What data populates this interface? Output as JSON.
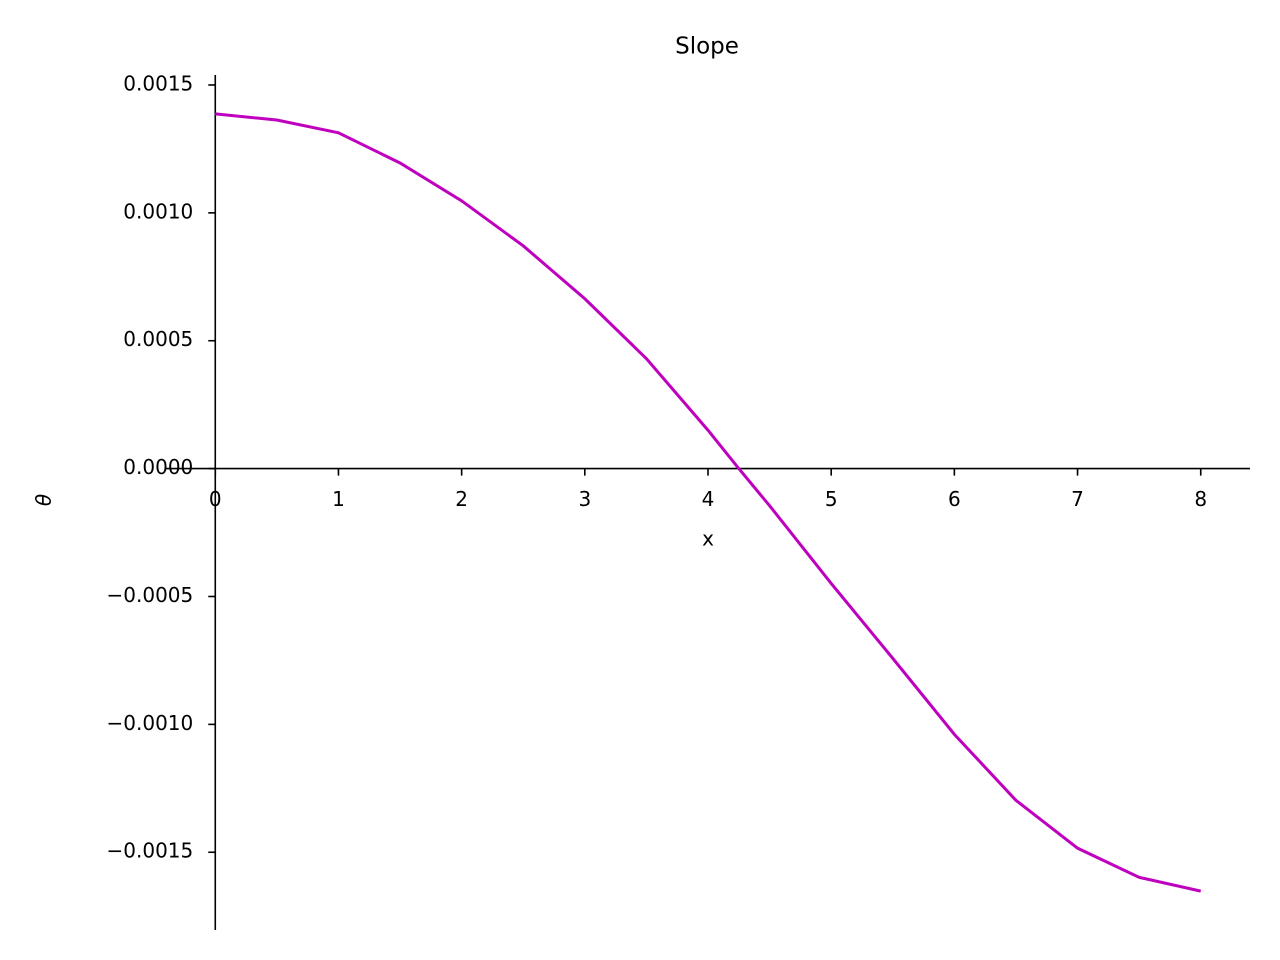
{
  "chart_data": {
    "type": "line",
    "title": "Slope",
    "xlabel": "x",
    "ylabel": "θ",
    "x": [
      0,
      0.5,
      1,
      1.5,
      2,
      2.5,
      3,
      3.5,
      4,
      4.25,
      4.5,
      5,
      5.5,
      6,
      6.5,
      7,
      7.5,
      8
    ],
    "series": [
      {
        "color": "#bf00bf",
        "values": [
          0.001387,
          0.001363,
          0.001313,
          0.001195,
          0.001047,
          0.000871,
          0.000664,
          0.00043,
          0.00015,
          0.0,
          -0.000145,
          -0.000449,
          -0.000742,
          -0.001039,
          -0.001297,
          -0.001484,
          -0.001598,
          -0.001652
        ]
      }
    ],
    "xlim": [
      -0.4,
      8.4
    ],
    "ylim": [
      -0.001804,
      0.001539
    ],
    "xticks": [
      0,
      1,
      2,
      3,
      4,
      5,
      6,
      7,
      8
    ],
    "yticks": [
      {
        "value": -0.0015,
        "label": "−0.0015"
      },
      {
        "value": -0.001,
        "label": "−0.0010"
      },
      {
        "value": -0.0005,
        "label": "−0.0005"
      },
      {
        "value": 0,
        "label": "0.0000"
      },
      {
        "value": 0.0005,
        "label": "0.0005"
      },
      {
        "value": 0.001,
        "label": "0.0010"
      },
      {
        "value": 0.0015,
        "label": "0.0015"
      }
    ]
  }
}
